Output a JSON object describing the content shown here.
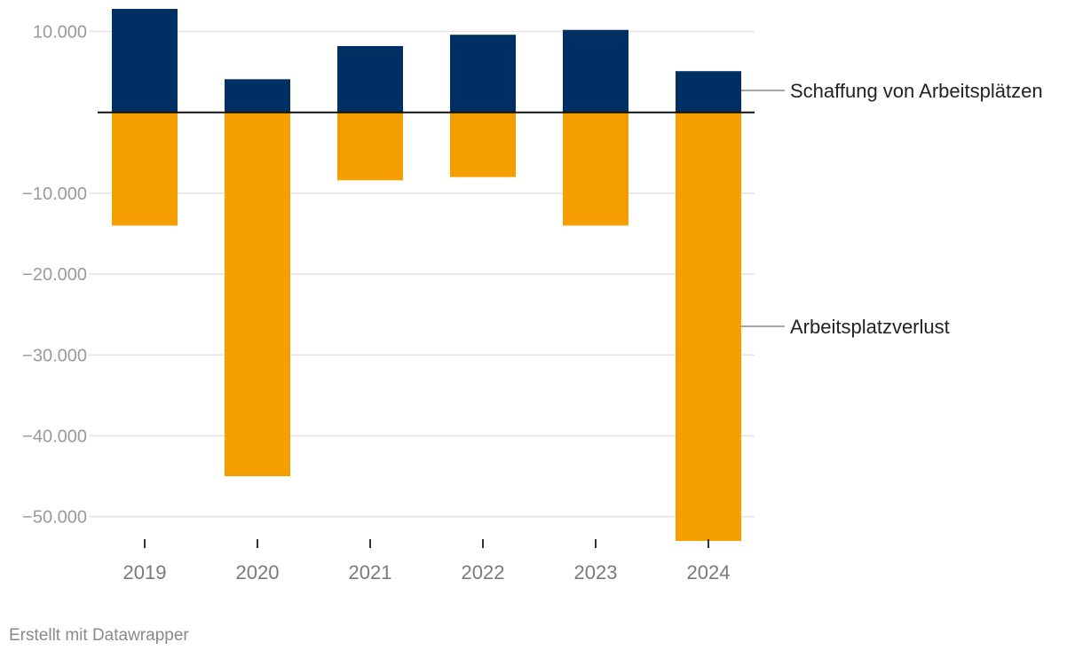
{
  "chart_data": {
    "type": "bar",
    "title": "",
    "xlabel": "",
    "ylabel": "",
    "categories": [
      "2019",
      "2020",
      "2021",
      "2022",
      "2023",
      "2024"
    ],
    "series": [
      {
        "name": "Schaffung von Arbeitsplätzen",
        "color": "#003063",
        "values": [
          12800,
          4100,
          8200,
          9600,
          10200,
          5100
        ]
      },
      {
        "name": "Arbeitsplatzverlust",
        "color": "#f59e00",
        "values": [
          -14000,
          -45000,
          -8400,
          -8000,
          -14000,
          -53000
        ]
      }
    ],
    "ylim": [
      -53000,
      12800
    ],
    "yticks": [
      10000,
      -10000,
      -20000,
      -30000,
      -40000,
      -50000
    ],
    "ytick_labels": [
      "10.000",
      "−10.000",
      "−20.000",
      "−30.000",
      "−40.000",
      "−50.000"
    ],
    "grid": true,
    "legend": "direct labels at right of bars"
  },
  "footer": {
    "text": "Erstellt mit Datawrapper"
  }
}
